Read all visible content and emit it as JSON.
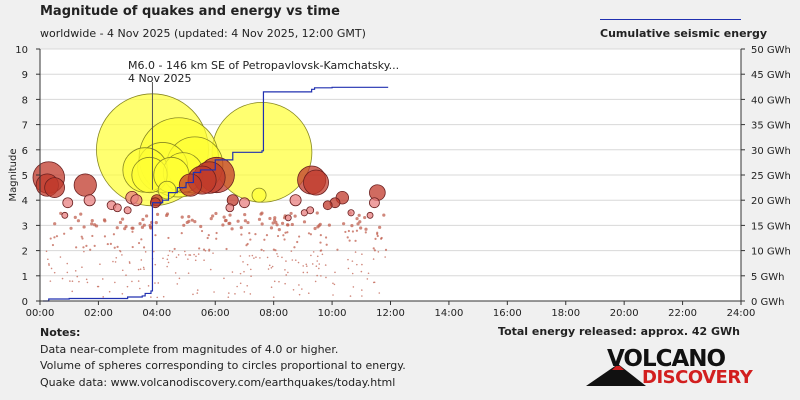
{
  "header": {
    "title": "Magnitude of quakes and energy vs time",
    "subtitle": "worldwide -  4 Nov 2025 (updated: 4 Nov 2025, 12:00 GMT)"
  },
  "legend": {
    "label": "Cumulative seismic energy",
    "line_color": "#2030b0"
  },
  "notes": {
    "heading": "Notes:",
    "lines": [
      "Data near-complete from magnitudes of 4.0 or higher.",
      "Volume of spheres corresponding to circles proportional to energy.",
      "Quake data: www.volcanodiscovery.com/earthquakes/today.html"
    ]
  },
  "total_energy": "Total energy released: approx. 42 GWh",
  "logo": {
    "top": "VOLCANO",
    "bottom": "DISCOVERY"
  },
  "chart_data": {
    "type": "scatter",
    "title": "Magnitude of quakes and energy vs time",
    "xlabel": "",
    "ylabel": "Magnitude",
    "y2label": "",
    "xlim": [
      0,
      24
    ],
    "ylim": [
      0,
      10
    ],
    "y2lim": [
      0,
      50
    ],
    "x_ticks": [
      "00:00",
      "02:00",
      "04:00",
      "06:00",
      "08:00",
      "10:00",
      "12:00",
      "14:00",
      "16:00",
      "18:00",
      "20:00",
      "22:00",
      "24:00"
    ],
    "y_ticks": [
      "0",
      "1",
      "2",
      "3",
      "4",
      "5",
      "6",
      "7",
      "8",
      "9",
      "10"
    ],
    "y2_ticks": [
      "0 GWh",
      "5 GWh",
      "10 GWh",
      "15 GWh",
      "20 GWh",
      "25 GWh",
      "30 GWh",
      "35 GWh",
      "40 GWh",
      "45 GWh",
      "50 GWh"
    ],
    "grid": true,
    "annotation": {
      "line1": "M6.0 - 146 km SE of Petropavlovsk-Kamchatsky...",
      "line2": "4 Nov 2025",
      "x": 3.85,
      "y": 6.0
    },
    "quakes_colors": {
      "strong": "#ffff33",
      "medium": "#c0392b",
      "weak": "#e88080"
    },
    "quakes": [
      {
        "t": 0.3,
        "m": 4.9,
        "c": "medium"
      },
      {
        "t": 0.25,
        "m": 4.6,
        "c": "medium"
      },
      {
        "t": 0.5,
        "m": 4.5,
        "c": "medium"
      },
      {
        "t": 0.95,
        "m": 3.9,
        "c": "weak"
      },
      {
        "t": 0.85,
        "m": 3.4,
        "c": "weak"
      },
      {
        "t": 1.55,
        "m": 4.6,
        "c": "medium"
      },
      {
        "t": 1.7,
        "m": 4.0,
        "c": "weak"
      },
      {
        "t": 2.45,
        "m": 3.8,
        "c": "weak"
      },
      {
        "t": 2.65,
        "m": 3.7,
        "c": "weak"
      },
      {
        "t": 3.0,
        "m": 3.6,
        "c": "weak"
      },
      {
        "t": 3.3,
        "m": 4.0,
        "c": "weak"
      },
      {
        "t": 3.15,
        "m": 4.1,
        "c": "weak"
      },
      {
        "t": 3.85,
        "m": 6.0,
        "c": "strong"
      },
      {
        "t": 3.6,
        "m": 5.2,
        "c": "strong"
      },
      {
        "t": 3.75,
        "m": 5.0,
        "c": "strong"
      },
      {
        "t": 4.2,
        "m": 5.3,
        "c": "strong"
      },
      {
        "t": 4.5,
        "m": 5.0,
        "c": "strong"
      },
      {
        "t": 4.75,
        "m": 5.7,
        "c": "strong"
      },
      {
        "t": 4.35,
        "m": 4.4,
        "c": "strong"
      },
      {
        "t": 4.9,
        "m": 5.1,
        "c": "strong"
      },
      {
        "t": 5.3,
        "m": 5.4,
        "c": "strong"
      },
      {
        "t": 5.15,
        "m": 4.6,
        "c": "medium"
      },
      {
        "t": 5.55,
        "m": 4.8,
        "c": "medium"
      },
      {
        "t": 5.8,
        "m": 4.9,
        "c": "medium"
      },
      {
        "t": 6.05,
        "m": 5.0,
        "c": "medium"
      },
      {
        "t": 4.0,
        "m": 4.0,
        "c": "medium"
      },
      {
        "t": 3.95,
        "m": 3.9,
        "c": "medium"
      },
      {
        "t": 6.6,
        "m": 4.0,
        "c": "medium"
      },
      {
        "t": 6.5,
        "m": 3.7,
        "c": "weak"
      },
      {
        "t": 7.0,
        "m": 3.9,
        "c": "weak"
      },
      {
        "t": 7.5,
        "m": 4.2,
        "c": "strong"
      },
      {
        "t": 7.6,
        "m": 5.9,
        "c": "strong"
      },
      {
        "t": 8.5,
        "m": 3.3,
        "c": "weak"
      },
      {
        "t": 8.75,
        "m": 4.0,
        "c": "weak"
      },
      {
        "t": 9.05,
        "m": 3.5,
        "c": "weak"
      },
      {
        "t": 9.3,
        "m": 4.8,
        "c": "medium"
      },
      {
        "t": 9.45,
        "m": 4.7,
        "c": "medium"
      },
      {
        "t": 9.25,
        "m": 3.6,
        "c": "weak"
      },
      {
        "t": 9.85,
        "m": 3.8,
        "c": "medium"
      },
      {
        "t": 10.1,
        "m": 3.9,
        "c": "medium"
      },
      {
        "t": 10.35,
        "m": 4.1,
        "c": "medium"
      },
      {
        "t": 10.65,
        "m": 3.5,
        "c": "weak"
      },
      {
        "t": 11.3,
        "m": 3.4,
        "c": "weak"
      },
      {
        "t": 11.45,
        "m": 3.9,
        "c": "weak"
      },
      {
        "t": 11.55,
        "m": 4.3,
        "c": "medium"
      }
    ],
    "energy_series": {
      "name": "Cumulative seismic energy",
      "points": [
        [
          0.1,
          0.0
        ],
        [
          0.3,
          0.4
        ],
        [
          1.0,
          0.5
        ],
        [
          2.0,
          0.5
        ],
        [
          3.0,
          0.8
        ],
        [
          3.5,
          1.0
        ],
        [
          3.6,
          1.5
        ],
        [
          3.8,
          2.0
        ],
        [
          3.85,
          19.5
        ],
        [
          4.2,
          20.0
        ],
        [
          4.4,
          21.5
        ],
        [
          4.7,
          22.5
        ],
        [
          5.0,
          23.5
        ],
        [
          5.25,
          25.5
        ],
        [
          5.5,
          26.0
        ],
        [
          6.0,
          28.0
        ],
        [
          6.6,
          29.5
        ],
        [
          7.6,
          29.8
        ],
        [
          7.65,
          41.5
        ],
        [
          9.3,
          42.0
        ],
        [
          9.4,
          42.3
        ],
        [
          10.0,
          42.4
        ],
        [
          11.0,
          42.4
        ],
        [
          11.9,
          42.5
        ]
      ]
    },
    "small_quakes_count": 360
  }
}
